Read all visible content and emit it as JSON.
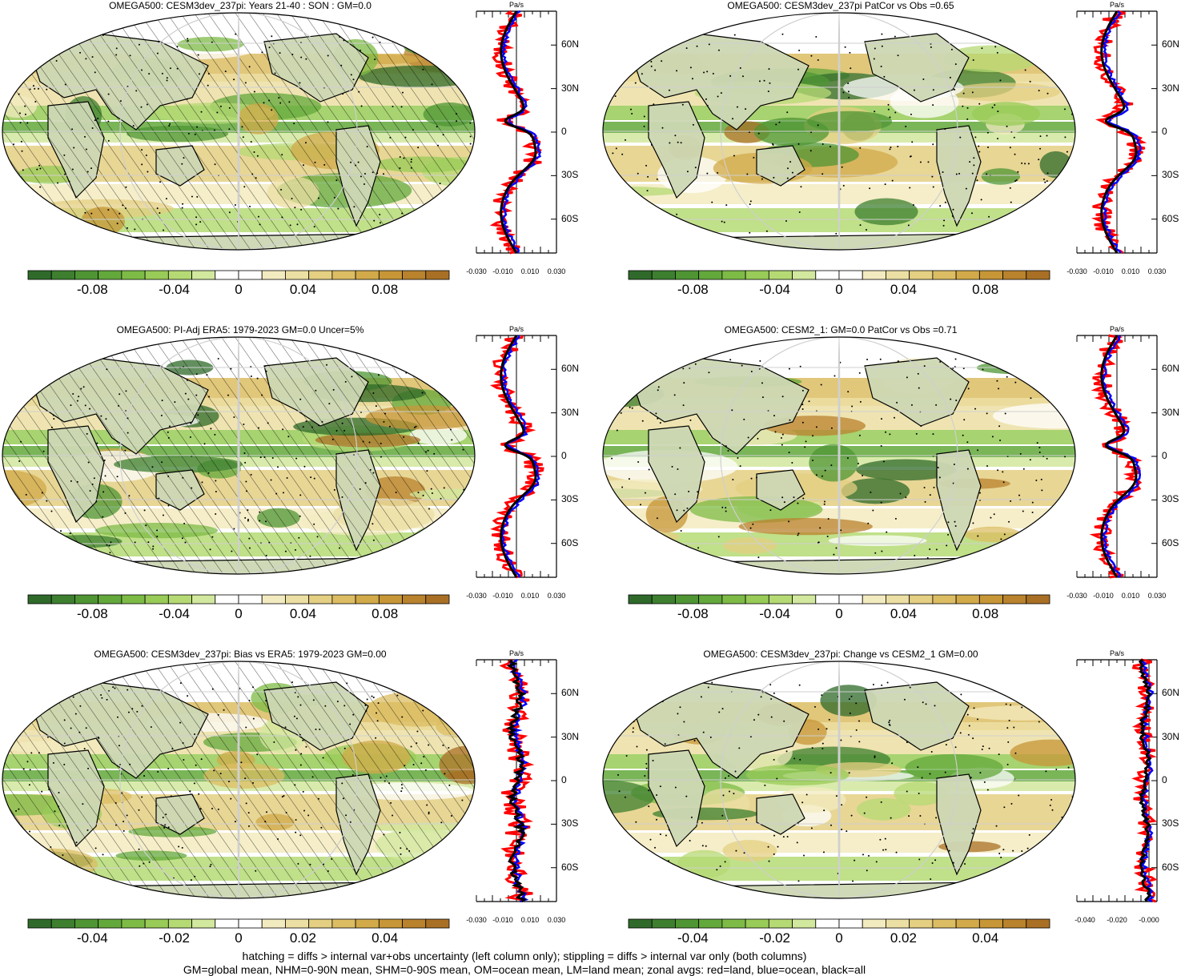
{
  "panels": [
    {
      "title": "OMEGA500: CESM3dev_237pi: Years 21-40 : SON : GM=0.0",
      "colorbar_ticks": [
        "-0.08",
        "-0.04",
        "0",
        "0.04",
        "0.08"
      ],
      "profile": {
        "unit": "Pa/s",
        "x_ticks": [
          "-0.030",
          "-0.010",
          "0.010",
          "0.030"
        ],
        "y_ticks": [
          "60N",
          "30N",
          "0",
          "30S",
          "60S"
        ]
      }
    },
    {
      "title": "OMEGA500: CESM3dev_237pi PatCor vs Obs =0.65",
      "colorbar_ticks": [
        "-0.08",
        "-0.04",
        "0",
        "0.04",
        "0.08"
      ],
      "profile": {
        "unit": "Pa/s",
        "x_ticks": [
          "-0.030",
          "-0.010",
          "0.010",
          "0.030"
        ],
        "y_ticks": [
          "60N",
          "30N",
          "0",
          "30S",
          "60S"
        ]
      }
    },
    {
      "title": "OMEGA500: PI-Adj ERA5: 1979-2023 GM=0.0 Uncer=5%",
      "colorbar_ticks": [
        "-0.08",
        "-0.04",
        "0",
        "0.04",
        "0.08"
      ],
      "profile": {
        "unit": "Pa/s",
        "x_ticks": [
          "-0.030",
          "-0.010",
          "0.010",
          "0.030"
        ],
        "y_ticks": [
          "60N",
          "30N",
          "0",
          "30S",
          "60S"
        ]
      }
    },
    {
      "title": "OMEGA500: CESM2_1: GM=0.0 PatCor vs Obs =0.71",
      "colorbar_ticks": [
        "-0.08",
        "-0.04",
        "0",
        "0.04",
        "0.08"
      ],
      "profile": {
        "unit": "Pa/s",
        "x_ticks": [
          "-0.030",
          "-0.010",
          "0.010",
          "0.030"
        ],
        "y_ticks": [
          "60N",
          "30N",
          "0",
          "30S",
          "60S"
        ]
      }
    },
    {
      "title": "OMEGA500: CESM3dev_237pi: Bias vs ERA5: 1979-2023  GM=0.00",
      "colorbar_ticks": [
        "-0.04",
        "-0.02",
        "0",
        "0.02",
        "0.04"
      ],
      "profile": {
        "unit": "Pa/s",
        "x_ticks": [
          "-0.030",
          "-0.010",
          "0.010",
          "0.030"
        ],
        "y_ticks": [
          "60N",
          "30N",
          "0",
          "30S",
          "60S"
        ]
      }
    },
    {
      "title": "OMEGA500: CESM3dev_237pi: Change vs CESM2_1 GM=0.00",
      "colorbar_ticks": [
        "-0.04",
        "-0.02",
        "0",
        "0.02",
        "0.04"
      ],
      "profile": {
        "unit": "Pa/s",
        "x_ticks": [
          "-0.040",
          "-0.020",
          "-0.000"
        ],
        "y_ticks": [
          "60N",
          "30N",
          "0",
          "30S",
          "60S"
        ]
      }
    }
  ],
  "colormap": [
    "#2f6a2a",
    "#3d7f2f",
    "#4f9534",
    "#63a83b",
    "#7dbb46",
    "#98cb57",
    "#b5da74",
    "#d2e89e",
    "#ffffff",
    "#ffffff",
    "#f3ebc0",
    "#ecdfa3",
    "#e4cf82",
    "#dcbd63",
    "#d2aa4a",
    "#c79637",
    "#b9822d",
    "#a97025"
  ],
  "line_colors": {
    "land": "#ff0000",
    "ocean": "#0000ff",
    "all": "#000000"
  },
  "land_color": "#c8c8c8",
  "footer": {
    "line1": "hatching = diffs > internal var+obs uncertainty (left column only); stippling = diffs > internal var only (both columns)",
    "line2": "GM=global mean, NHM=0-90N mean, SHM=0-90S mean, OM=ocean mean, LM=land mean; zonal avgs: red=land, blue=ocean, black=all"
  }
}
